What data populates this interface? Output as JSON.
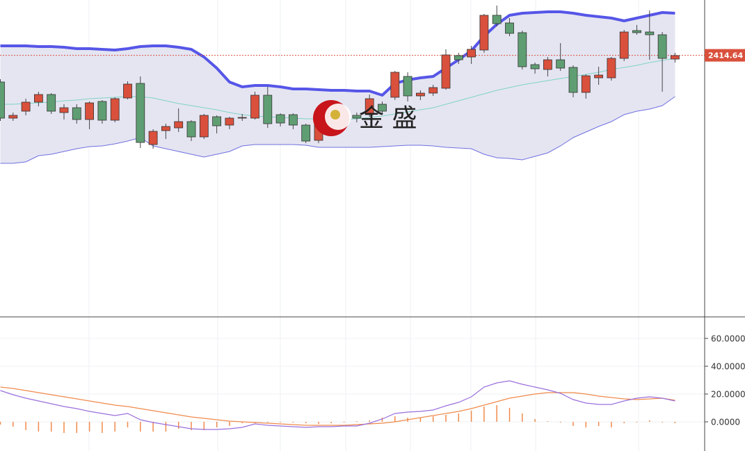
{
  "chart_data": [
    {
      "type": "candlestick",
      "ylim": [
        2377.1,
        2422.6
      ],
      "up_color": "#d9503c",
      "down_color": "#5f9e72",
      "open": [
        2410.8,
        2405.6,
        2406.6,
        2407.9,
        2409.0,
        2406.4,
        2407.1,
        2405.4,
        2408.0,
        2405.3,
        2408.5,
        2410.6,
        2401.8,
        2403.8,
        2404.2,
        2405.1,
        2402.9,
        2405.8,
        2404.6,
        2405.6,
        2405.6,
        2408.9,
        2406.1,
        2406.1,
        2404.6,
        2402.4,
        2404.9,
        2405.4,
        2406.0,
        2406.1,
        2407.6,
        2408.6,
        2411.6,
        2408.8,
        2409.2,
        2409.9,
        2414.6,
        2414.4,
        2415.4,
        2420.4,
        2419.3,
        2417.9,
        2413.3,
        2412.6,
        2414.0,
        2412.9,
        2409.3,
        2411.4,
        2411.4,
        2414.2,
        2418.2,
        2418.0,
        2417.6,
        2414.1
      ],
      "high": [
        2411.2,
        2406.4,
        2408.4,
        2409.4,
        2409.2,
        2407.6,
        2407.6,
        2408.0,
        2408.2,
        2408.6,
        2410.9,
        2411.6,
        2404.0,
        2404.8,
        2407.0,
        2405.3,
        2406.2,
        2406.0,
        2405.8,
        2406.2,
        2409.4,
        2410.1,
        2406.3,
        2406.3,
        2404.8,
        2405.2,
        2406.4,
        2406.2,
        2406.4,
        2409.0,
        2408.0,
        2412.4,
        2412.2,
        2409.6,
        2410.4,
        2415.5,
        2415.0,
        2416.0,
        2420.6,
        2421.8,
        2420.0,
        2418.2,
        2413.6,
        2414.4,
        2416.4,
        2413.2,
        2411.9,
        2413.0,
        2414.4,
        2418.3,
        2419.0,
        2421.1,
        2418.0,
        2415.0
      ],
      "low": [
        2405.2,
        2405.2,
        2406.0,
        2407.3,
        2406.2,
        2405.4,
        2404.8,
        2404.0,
        2404.8,
        2405.0,
        2408.3,
        2401.3,
        2401.2,
        2402.6,
        2403.6,
        2402.3,
        2402.6,
        2403.4,
        2404.0,
        2405.2,
        2405.4,
        2404.2,
        2404.4,
        2404.0,
        2402.0,
        2402.0,
        2404.6,
        2405.0,
        2405.0,
        2405.8,
        2406.2,
        2408.2,
        2408.0,
        2408.2,
        2408.8,
        2409.7,
        2413.4,
        2413.4,
        2415.0,
        2418.8,
        2417.4,
        2412.6,
        2412.0,
        2411.6,
        2412.4,
        2408.6,
        2408.4,
        2410.4,
        2411.0,
        2413.8,
        2417.6,
        2414.0,
        2409.4,
        2413.6
      ],
      "close": [
        2405.6,
        2406.0,
        2407.9,
        2409.0,
        2406.6,
        2407.1,
        2405.4,
        2407.8,
        2405.3,
        2408.4,
        2410.5,
        2402.1,
        2403.7,
        2404.4,
        2405.1,
        2402.9,
        2406.0,
        2404.5,
        2405.6,
        2405.7,
        2408.9,
        2404.8,
        2404.9,
        2404.6,
        2402.3,
        2404.9,
        2406.1,
        2405.9,
        2405.6,
        2408.4,
        2406.6,
        2412.2,
        2408.8,
        2409.2,
        2410.0,
        2414.7,
        2414.0,
        2415.5,
        2420.4,
        2419.2,
        2417.8,
        2413.0,
        2412.7,
        2414.0,
        2412.8,
        2409.3,
        2411.7,
        2411.8,
        2414.2,
        2418.0,
        2417.9,
        2417.6,
        2414.2,
        2414.6
      ],
      "upper_band": {
        "color": "#5656e8",
        "values": [
          2416.0,
          2416.0,
          2416.0,
          2415.9,
          2415.9,
          2415.8,
          2415.6,
          2415.6,
          2415.5,
          2415.4,
          2415.6,
          2415.9,
          2416.0,
          2416.0,
          2415.8,
          2415.5,
          2414.4,
          2412.8,
          2410.8,
          2410.1,
          2410.3,
          2410.3,
          2410.1,
          2409.8,
          2409.8,
          2409.7,
          2409.6,
          2409.6,
          2409.5,
          2409.5,
          2408.9,
          2410.6,
          2411.1,
          2411.4,
          2411.6,
          2412.8,
          2414.0,
          2415.3,
          2417.4,
          2419.1,
          2420.4,
          2420.7,
          2420.8,
          2420.9,
          2420.9,
          2420.7,
          2420.4,
          2420.2,
          2420.0,
          2419.6,
          2420.0,
          2420.4,
          2420.8,
          2420.7
        ]
      },
      "middle_band": {
        "color": "#7fd3c2",
        "values": [
          2407.6,
          2407.6,
          2407.7,
          2407.8,
          2407.9,
          2408.1,
          2408.2,
          2408.4,
          2408.5,
          2408.6,
          2408.7,
          2408.7,
          2408.5,
          2408.1,
          2407.7,
          2407.4,
          2407.1,
          2406.8,
          2406.4,
          2406.1,
          2405.9,
          2405.8,
          2405.7,
          2405.6,
          2405.5,
          2405.5,
          2405.4,
          2405.4,
          2405.5,
          2405.7,
          2405.9,
          2406.2,
          2406.5,
          2406.8,
          2407.1,
          2407.6,
          2408.1,
          2408.6,
          2409.1,
          2409.6,
          2410.0,
          2410.4,
          2410.7,
          2411.0,
          2411.3,
          2411.6,
          2411.9,
          2412.2,
          2412.6,
          2412.9,
          2413.2,
          2413.6,
          2413.9,
          2414.2
        ]
      },
      "lower_band": {
        "color": "#6f6fe0",
        "values": [
          2399.1,
          2399.1,
          2399.3,
          2400.2,
          2400.4,
          2400.8,
          2401.2,
          2401.5,
          2401.6,
          2401.9,
          2402.3,
          2402.8,
          2401.6,
          2401.2,
          2400.8,
          2400.4,
          2400.0,
          2400.4,
          2400.8,
          2401.6,
          2401.8,
          2401.8,
          2401.8,
          2401.8,
          2401.7,
          2401.4,
          2401.4,
          2401.4,
          2401.4,
          2401.4,
          2401.5,
          2401.6,
          2401.7,
          2401.7,
          2401.6,
          2401.4,
          2401.3,
          2401.2,
          2400.4,
          2399.9,
          2399.8,
          2399.6,
          2400.1,
          2400.6,
          2401.6,
          2402.8,
          2403.6,
          2404.4,
          2405.1,
          2406.1,
          2406.6,
          2406.9,
          2407.4,
          2408.7
        ]
      },
      "band_fill": "#e5e5f2",
      "last_price": {
        "value": 2414.64,
        "label": "2414.64",
        "color": "#d9503c"
      },
      "watermark": "金 盛"
    },
    {
      "type": "macd",
      "ylim": [
        -21,
        75.5
      ],
      "yticks": [
        {
          "value": 0,
          "label": "0.0000"
        },
        {
          "value": 20,
          "label": "20.0000"
        },
        {
          "value": 40,
          "label": "40.0000"
        },
        {
          "value": 60,
          "label": "60.0000"
        }
      ],
      "dif": {
        "color": "#9a6fdc",
        "values": [
          22.5,
          19.5,
          17,
          15,
          13,
          11,
          9.5,
          7.5,
          6,
          4.5,
          6,
          1.5,
          -0.5,
          -2,
          -3.5,
          -5,
          -5.5,
          -5.5,
          -5,
          -4,
          -1.5,
          -2.5,
          -3,
          -3.5,
          -4,
          -3.5,
          -3.5,
          -3,
          -3,
          -1,
          2,
          6,
          7,
          7.5,
          8.5,
          11.5,
          14,
          18,
          25,
          28,
          29.5,
          27,
          25,
          23,
          20.5,
          16,
          13.5,
          12.5,
          12.5,
          15,
          17,
          18,
          17,
          15
        ]
      },
      "dea": {
        "color": "#f08a4b",
        "values": [
          25,
          24,
          22.5,
          21,
          19.5,
          18,
          16.5,
          15,
          13.5,
          12,
          11,
          9.5,
          8,
          6.5,
          5,
          3.5,
          2.5,
          1.5,
          0.5,
          0,
          -0.5,
          -1,
          -1.5,
          -2,
          -2.5,
          -2.5,
          -2.5,
          -2.5,
          -2,
          -1.5,
          -1,
          0,
          1.5,
          3,
          4.5,
          6,
          7.5,
          9.5,
          12,
          14.5,
          17,
          18.5,
          20,
          21,
          21,
          21,
          20,
          18.5,
          17.5,
          16.5,
          16,
          16.5,
          17,
          15.5
        ]
      },
      "histogram": {
        "color": "#f08a4b",
        "values": [
          -2,
          -3.5,
          -6,
          -7,
          -7,
          -8,
          -8,
          -7,
          -8,
          -7,
          -4,
          -7,
          -7,
          -7,
          -5,
          -6,
          -6,
          -4,
          -3,
          -1,
          -1,
          -0.5,
          -0.5,
          -0.5,
          -1,
          -1.5,
          -1,
          -0.5,
          0.5,
          1,
          3,
          4,
          3,
          3,
          4,
          5,
          6,
          8,
          11,
          12,
          10,
          6,
          2,
          0.5,
          -0.5,
          -3,
          -4,
          -3,
          -4,
          -1,
          -0.5,
          1,
          -0.5,
          -1
        ]
      }
    }
  ]
}
